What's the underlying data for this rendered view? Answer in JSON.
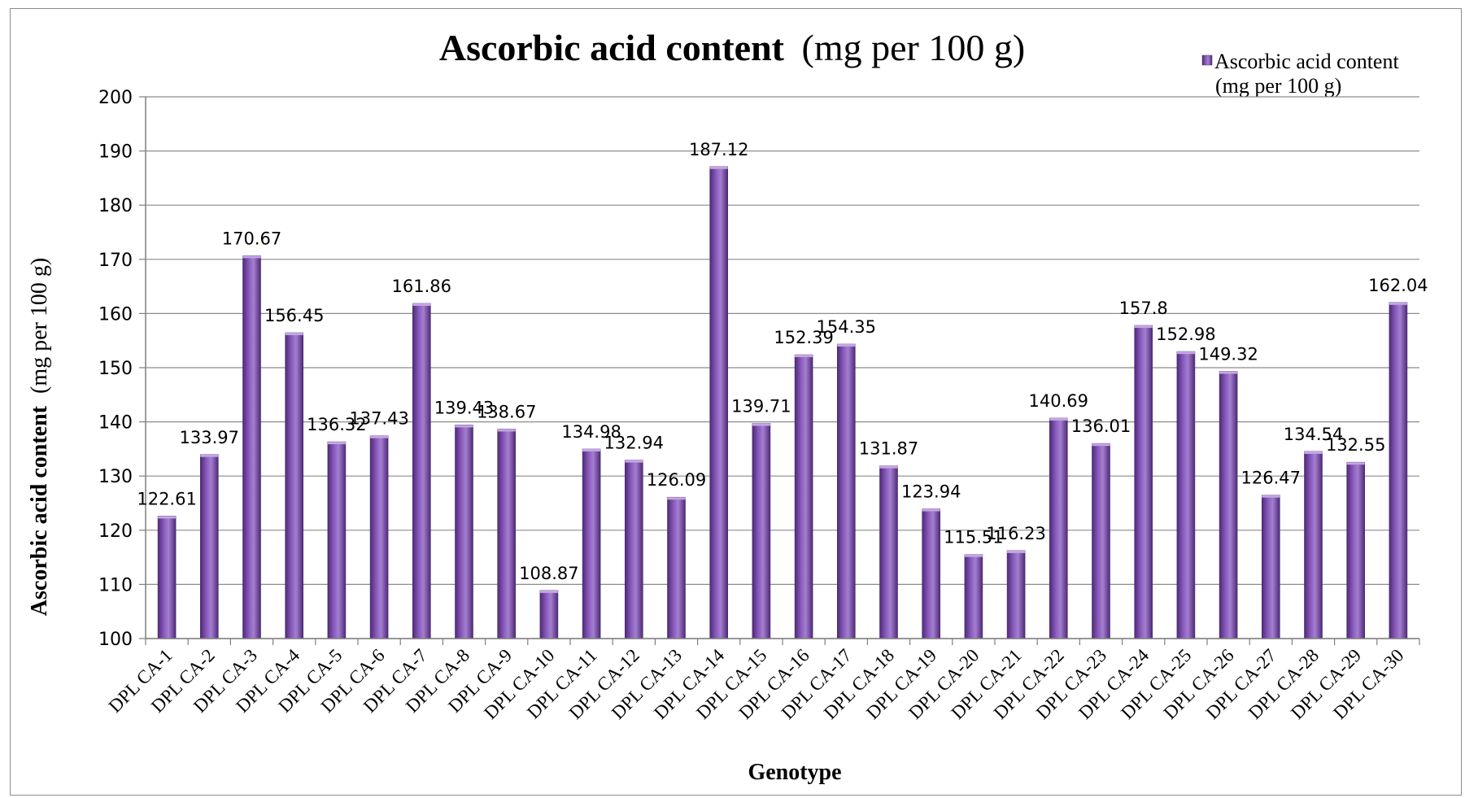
{
  "chart_data": {
    "type": "bar",
    "title": {
      "bold_part": "Ascorbic acid content",
      "normal_part": "(mg per 100 g)"
    },
    "xlabel": "Genotype",
    "ylabel": {
      "bold_part": "Ascorbic acid content",
      "normal_part": "(mg per 100 g)"
    },
    "ylim": [
      100,
      200
    ],
    "yticks": [
      "100",
      "110",
      "120",
      "130",
      "140",
      "150",
      "160",
      "170",
      "180",
      "190",
      "200"
    ],
    "grid": true,
    "legend_position": "top-right",
    "legend": {
      "line1": "Ascorbic acid content",
      "line2": "(mg per 100 g)"
    },
    "categories": [
      "DPL CA-1",
      "DPL CA-2",
      "DPL CA-3",
      "DPL CA-4",
      "DPL CA-5",
      "DPL CA-6",
      "DPL CA-7",
      "DPL CA-8",
      "DPL CA-9",
      "DPL CA-10",
      "DPL CA-11",
      "DPL CA-12",
      "DPL CA-13",
      "DPL CA-14",
      "DPL CA-15",
      "DPL CA-16",
      "DPL CA-17",
      "DPL CA-18",
      "DPL CA-19",
      "DPL CA-20",
      "DPL CA-21",
      "DPL CA-22",
      "DPL CA-23",
      "DPL CA-24",
      "DPL CA-25",
      "DPL CA-26",
      "DPL CA-27",
      "DPL CA-28",
      "DPL CA-29",
      "DPL CA-30"
    ],
    "series": [
      {
        "name": "Ascorbic acid content (mg per 100 g)",
        "color": "#7b4aa6",
        "values": [
          122.61,
          133.97,
          170.67,
          156.45,
          136.32,
          137.43,
          161.86,
          139.43,
          138.67,
          108.87,
          134.98,
          132.94,
          126.09,
          187.12,
          139.71,
          152.39,
          154.35,
          131.87,
          123.94,
          115.51,
          116.23,
          140.69,
          136.01,
          157.8,
          152.98,
          149.32,
          126.47,
          134.54,
          132.55,
          162.04
        ],
        "labels": [
          "122.61",
          "133.97",
          "170.67",
          "156.45",
          "136.32",
          "137.43",
          "161.86",
          "139.43",
          "138.67",
          "108.87",
          "134.98",
          "132.94",
          "126.09",
          "187.12",
          "139.71",
          "152.39",
          "154.35",
          "131.87",
          "123.94",
          "115.51",
          "116.23",
          "140.69",
          "136.01",
          "157.8",
          "152.98",
          "149.32",
          "126.47",
          "134.54",
          "132.55",
          "162.04"
        ]
      }
    ]
  }
}
